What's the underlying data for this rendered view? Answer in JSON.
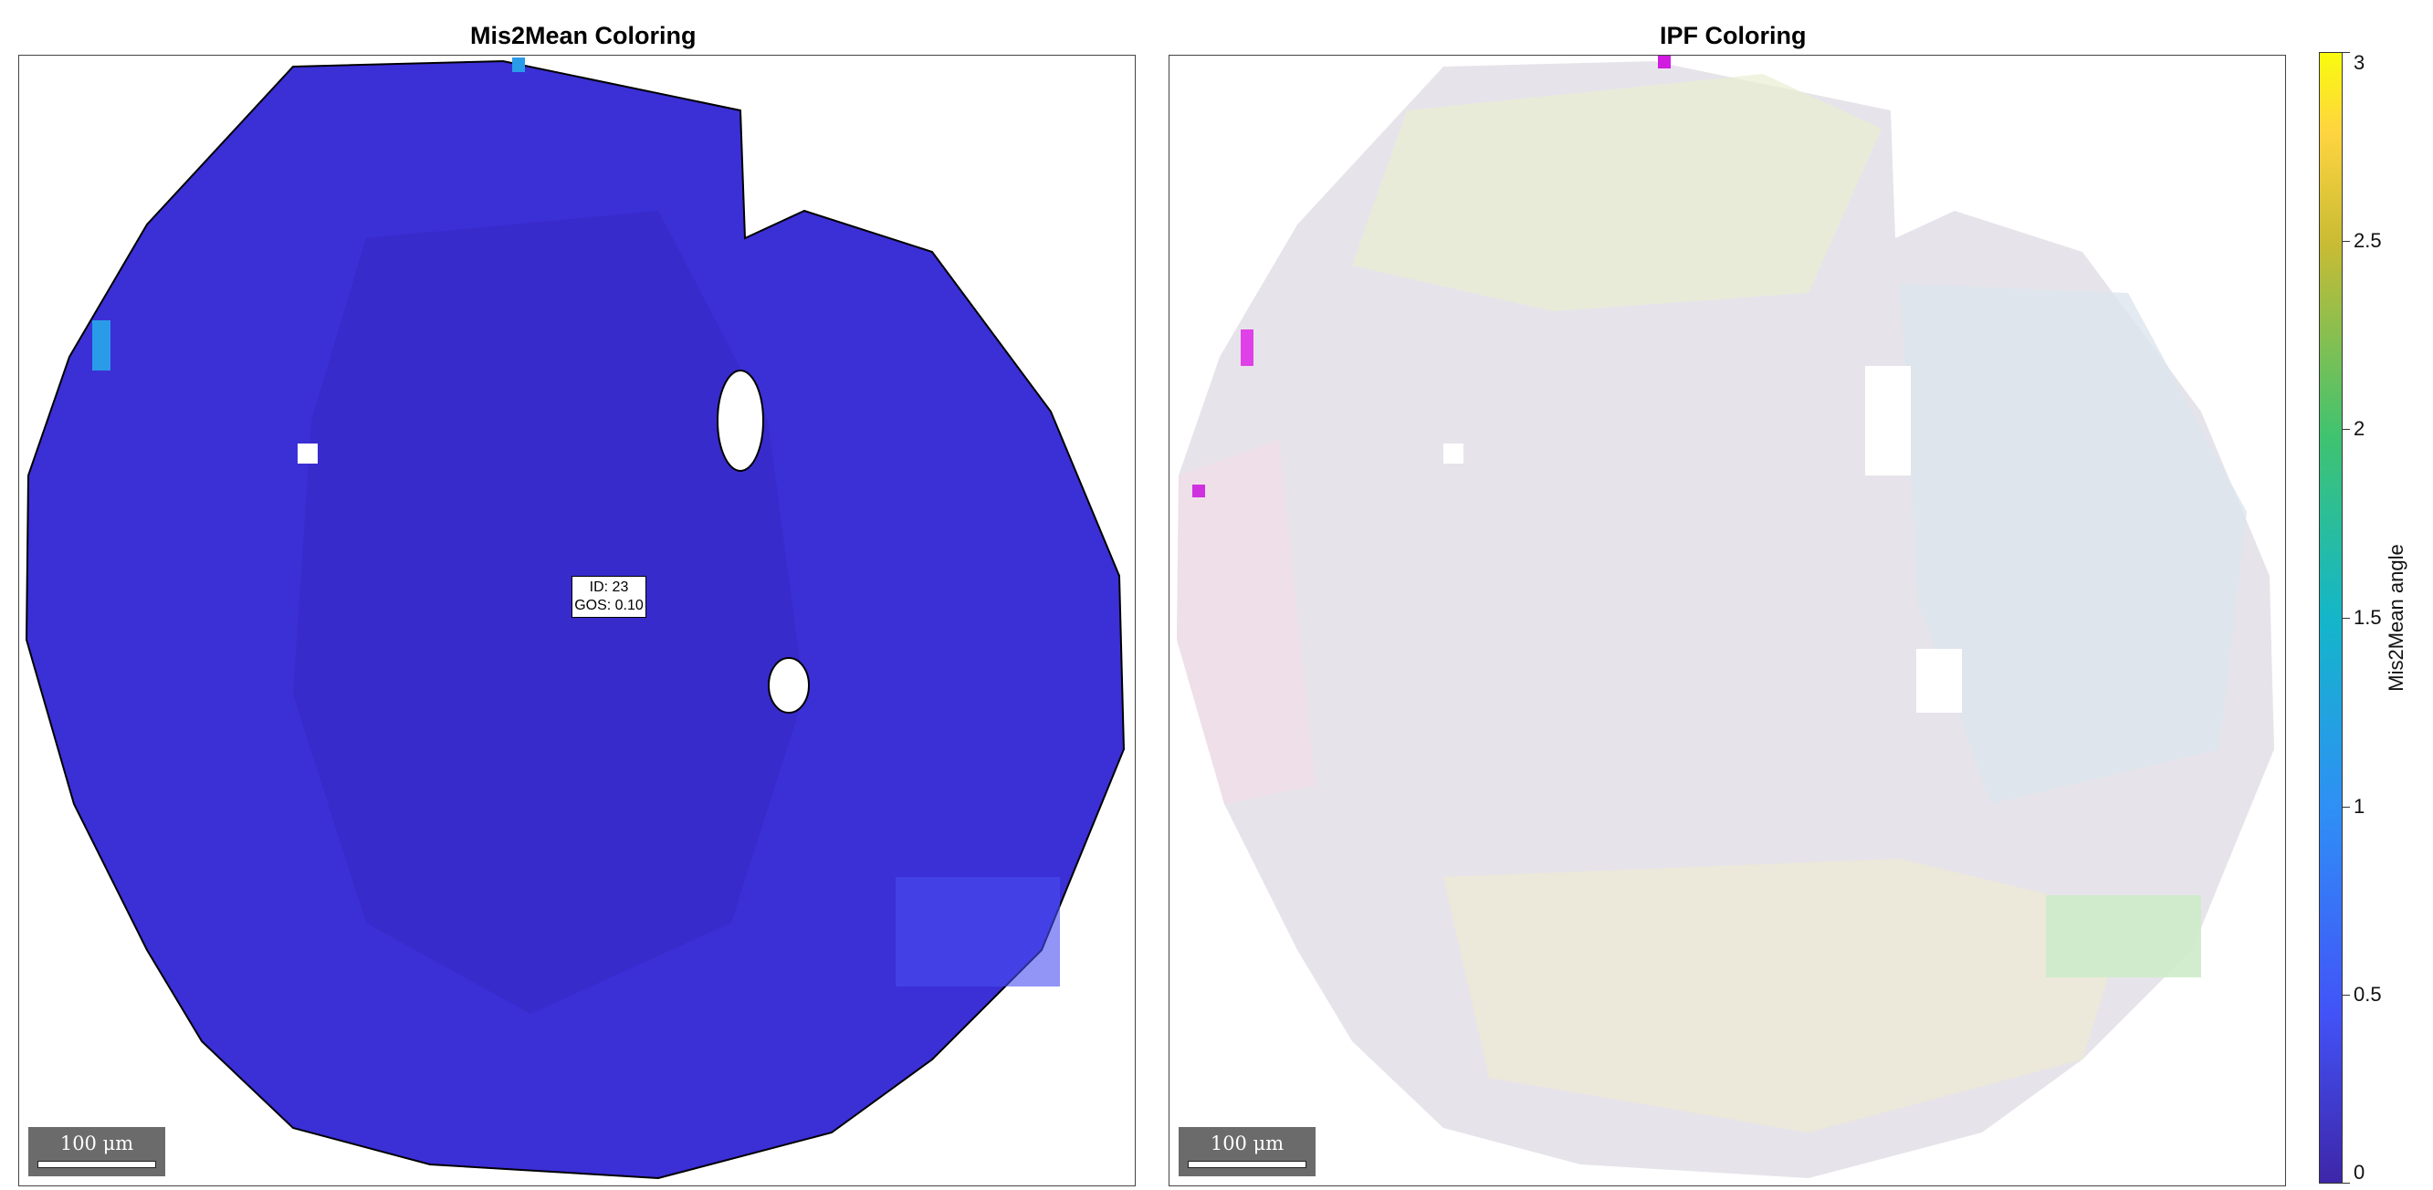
{
  "left_panel": {
    "title": "Mis2Mean Coloring",
    "fill_color": "#3b2fd6",
    "scalebar_label": "100 μm",
    "annotation": {
      "line1": "ID: 23",
      "line2": "GOS: 0.10"
    }
  },
  "right_panel": {
    "title": "IPF Coloring",
    "fill_color": "#e6e4ea",
    "scalebar_label": "100 μm"
  },
  "colorbar": {
    "label": "Mis2Mean angle",
    "range": [
      0,
      3
    ],
    "colormap": "parula",
    "ticks": [
      "0",
      "0.5",
      "1",
      "1.5",
      "2",
      "2.5",
      "3"
    ]
  }
}
